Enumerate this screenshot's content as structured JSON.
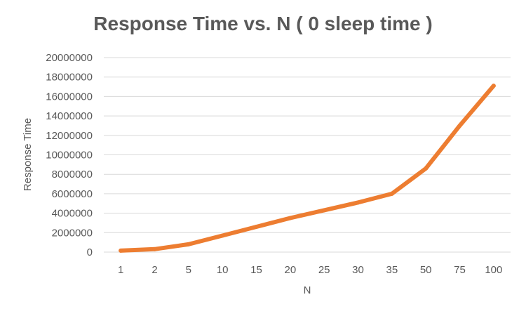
{
  "chart_data": {
    "type": "line",
    "title": "Response Time vs. N ( 0 sleep time )",
    "xlabel": "N",
    "ylabel": "Response Time",
    "categories": [
      "1",
      "2",
      "5",
      "10",
      "15",
      "20",
      "25",
      "30",
      "35",
      "50",
      "75",
      "100"
    ],
    "series": [
      {
        "values": [
          150000,
          300000,
          800000,
          1700000,
          2600000,
          3500000,
          4300000,
          5100000,
          6000000,
          8600000,
          13000000,
          17100000
        ]
      }
    ],
    "ylim": [
      0,
      20000000
    ],
    "y_ticks": [
      "0",
      "2000000",
      "4000000",
      "6000000",
      "8000000",
      "10000000",
      "12000000",
      "14000000",
      "16000000",
      "18000000",
      "20000000"
    ],
    "grid": "horizontal",
    "legend": "none",
    "colors": {
      "line": "#ED7D31",
      "grid": "#D9D9D9",
      "text": "#595959"
    }
  }
}
